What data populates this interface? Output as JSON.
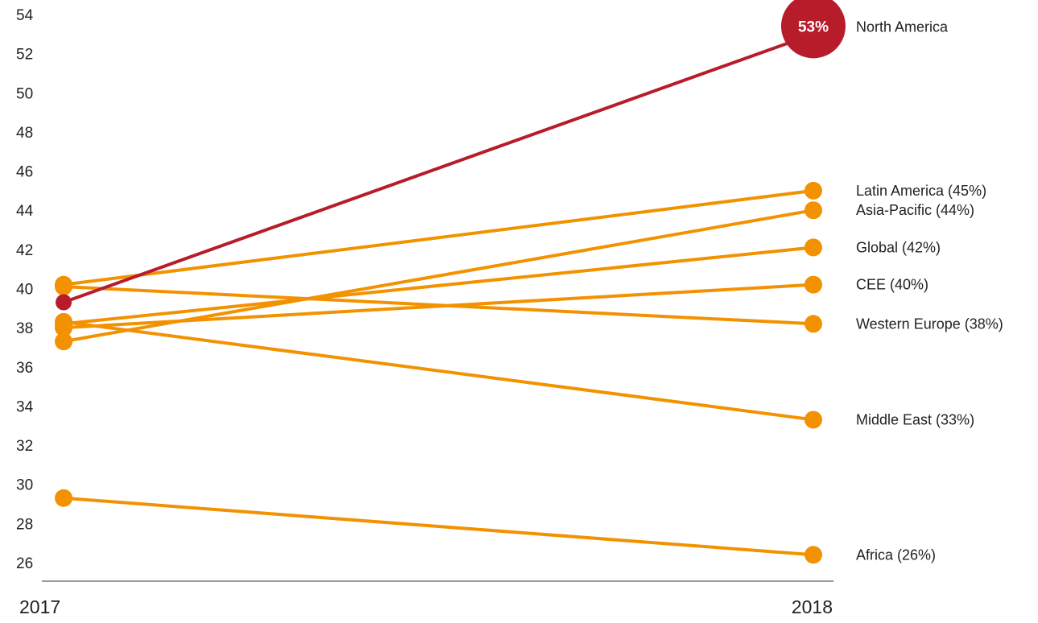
{
  "chart_data": {
    "type": "line",
    "x": [
      "2017",
      "2018"
    ],
    "yticks": [
      26,
      28,
      30,
      32,
      34,
      36,
      38,
      40,
      42,
      44,
      46,
      48,
      50,
      52,
      54
    ],
    "ylim": [
      26,
      54
    ],
    "grid": false,
    "series": [
      {
        "name": "North America",
        "values": [
          39.3,
          53
        ],
        "color": "#b71c2b",
        "highlight": true,
        "end_value_label": "53%"
      },
      {
        "name": "Latin America (45%)",
        "values": [
          40.2,
          45
        ],
        "color": "#f39200"
      },
      {
        "name": "Asia-Pacific (44%)",
        "values": [
          37.3,
          44
        ],
        "color": "#f39200"
      },
      {
        "name": "Global (42%)",
        "values": [
          38.2,
          42.1
        ],
        "color": "#f39200"
      },
      {
        "name": "CEE (40%)",
        "values": [
          38.0,
          40.2
        ],
        "color": "#f39200"
      },
      {
        "name": "Western Europe (38%)",
        "values": [
          40.1,
          38.2
        ],
        "color": "#f39200"
      },
      {
        "name": "Middle East (33%)",
        "values": [
          38.3,
          33.3
        ],
        "color": "#f39200"
      },
      {
        "name": "Africa (26%)",
        "values": [
          29.3,
          26.4
        ],
        "color": "#f39200"
      }
    ]
  }
}
